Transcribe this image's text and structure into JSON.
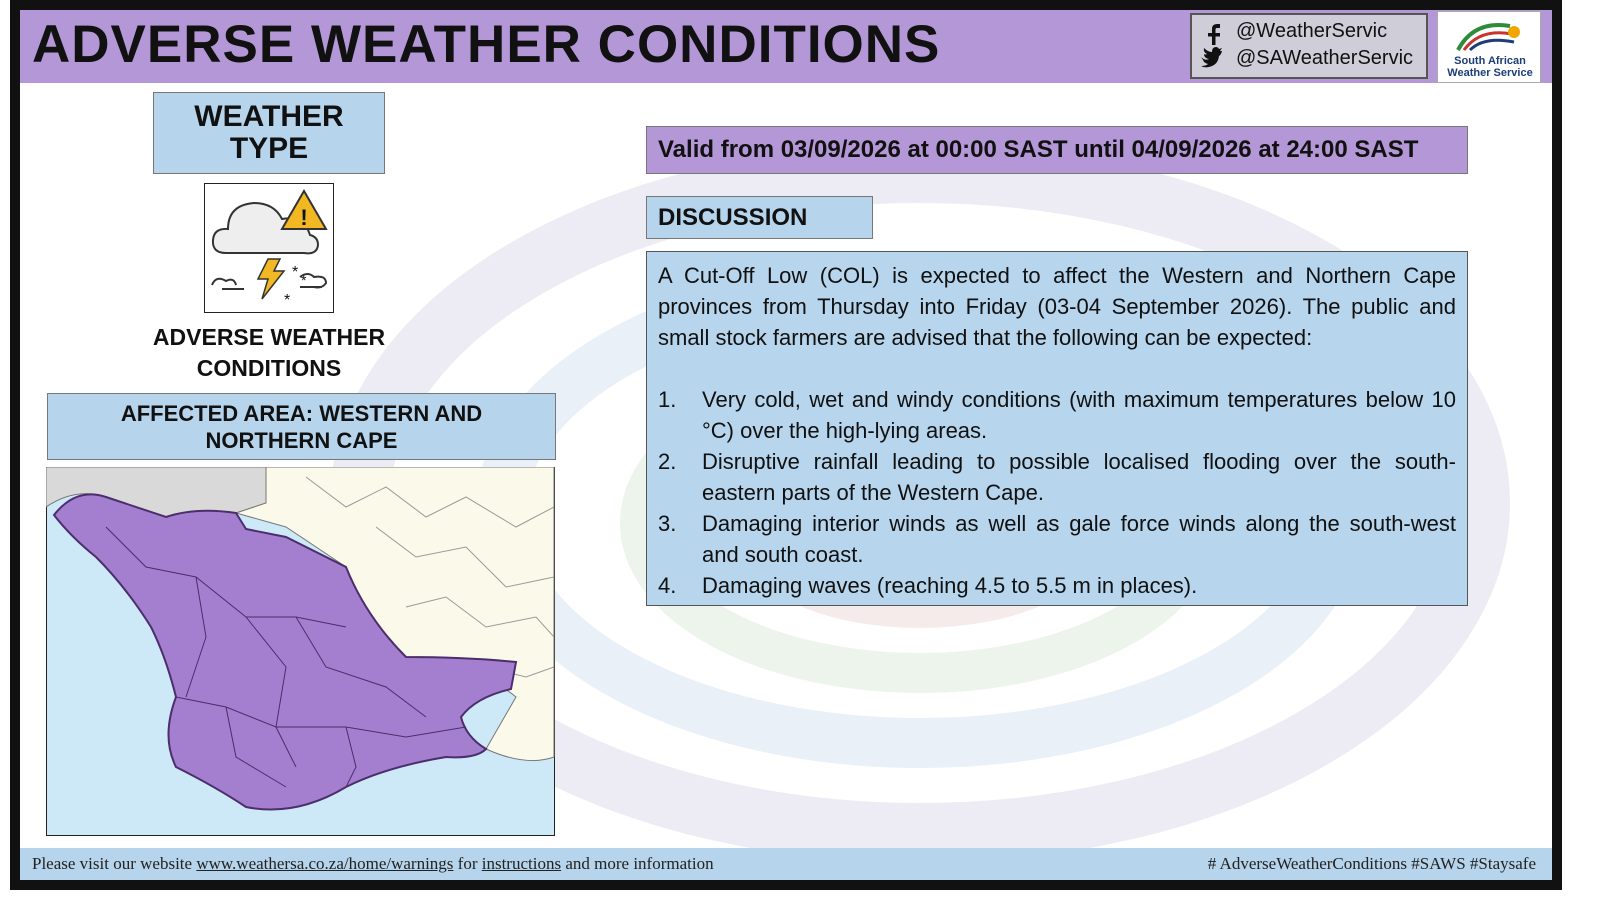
{
  "header": {
    "title": "ADVERSE WEATHER CONDITIONS",
    "facebook": "@WeatherServic",
    "twitter": "@SAWeatherServic",
    "logo_text": "South African Weather Service"
  },
  "weather_type": {
    "heading": "WEATHER TYPE",
    "label": "ADVERSE WEATHER CONDITIONS"
  },
  "affected_area": "AFFECTED AREA: WESTERN AND NORTHERN CAPE",
  "validity": "Valid from 03/09/2026 at 00:00 SAST until 04/09/2026 at 24:00 SAST",
  "discussion": {
    "heading": "DISCUSSION",
    "intro": "A Cut-Off Low (COL) is expected to affect the Western and Northern Cape provinces from Thursday into Friday (03-04 September 2026). The public and small stock farmers are advised that the following can be expected:",
    "items": [
      {
        "number": "1.",
        "text": "Very cold, wet and windy conditions (with maximum temperatures below 10 °C) over the high-lying areas."
      },
      {
        "number": "2.",
        "text": "Disruptive rainfall leading to possible localised flooding over the south-eastern parts of the Western Cape."
      },
      {
        "number": "3.",
        "text": "Damaging interior winds as well as gale force winds along the south-west and south coast."
      },
      {
        "number": "4.",
        "text": "Damaging waves (reaching 4.5 to 5.5 m in places)."
      }
    ]
  },
  "footer": {
    "left": [
      "Please visit our website",
      "www.weathersa.co.za/home/warnings",
      "for",
      "instructions",
      "and more information"
    ],
    "right": "# AdverseWeatherConditions #SAWS #Staysafe"
  }
}
